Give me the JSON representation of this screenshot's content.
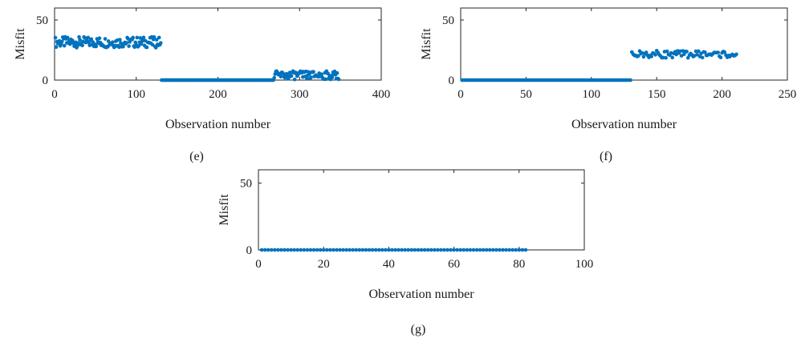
{
  "accent_color": "#0072BD",
  "chart_data": [
    {
      "type": "scatter",
      "panel_label": "(e)",
      "xlabel": "Observation number",
      "ylabel": "Misfit",
      "xlim": [
        0,
        400
      ],
      "ylim": [
        0,
        60
      ],
      "xticks": [
        "0",
        "100",
        "200",
        "300",
        "400"
      ],
      "yticks": [
        "0",
        "50"
      ],
      "segments": [
        {
          "x_range": [
            1,
            130
          ],
          "center": 31.5,
          "spread": 4.5
        },
        {
          "x_range": [
            131,
            268
          ],
          "center": 0,
          "spread": 0
        },
        {
          "x_range": [
            269,
            348
          ],
          "center": 4,
          "spread": 3.5
        }
      ]
    },
    {
      "type": "scatter",
      "panel_label": "(f)",
      "xlabel": "Observation number",
      "ylabel": "Misfit",
      "xlim": [
        0,
        250
      ],
      "ylim": [
        0,
        60
      ],
      "xticks": [
        "0",
        "50",
        "100",
        "150",
        "200",
        "250"
      ],
      "yticks": [
        "0",
        "50"
      ],
      "segments": [
        {
          "x_range": [
            1,
            130
          ],
          "center": 0,
          "spread": 0
        },
        {
          "x_range": [
            131,
            211
          ],
          "center": 21.5,
          "spread": 3
        }
      ]
    },
    {
      "type": "scatter",
      "panel_label": "(g)",
      "xlabel": "Observation number",
      "ylabel": "Misfit",
      "xlim": [
        0,
        100
      ],
      "ylim": [
        0,
        60
      ],
      "xticks": [
        "0",
        "20",
        "40",
        "60",
        "80",
        "100"
      ],
      "yticks": [
        "0",
        "50"
      ],
      "segments": [
        {
          "x_range": [
            1,
            82
          ],
          "center": 0,
          "spread": 0
        }
      ]
    }
  ]
}
